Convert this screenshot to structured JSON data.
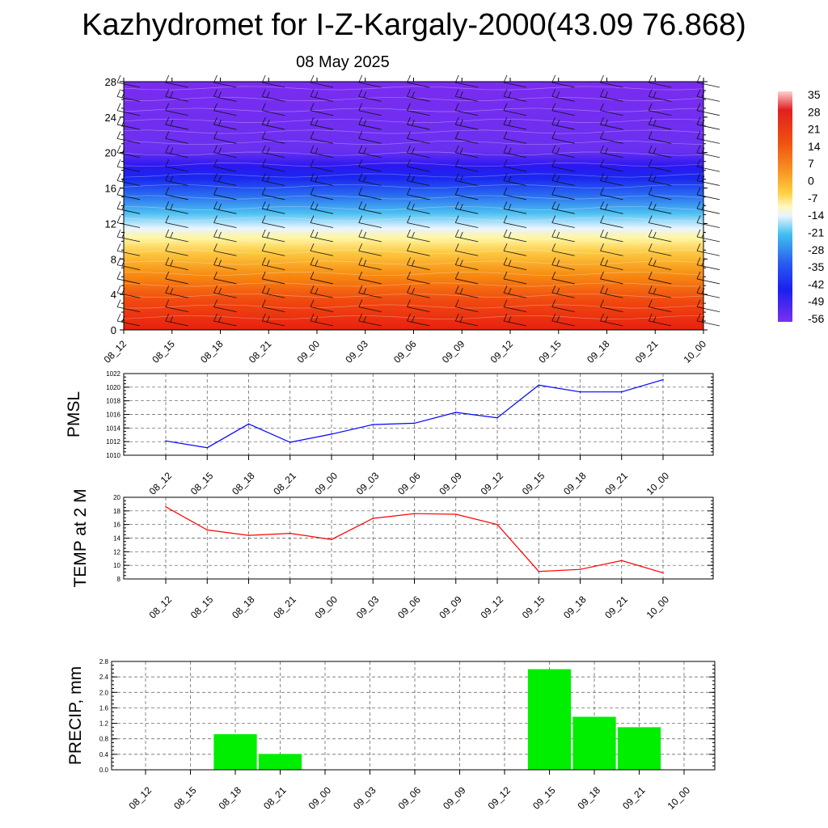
{
  "title": "Kazhydromet for I-Z-Kargaly-2000(43.09 76.868)",
  "subtitle": "08 May 2025",
  "colors": {
    "pmsl_line": "#0000ff",
    "temp_line": "#ff0000",
    "precip_bar": "#00ee00",
    "axis": "#000000",
    "grid": "#555555"
  },
  "chart_data": [
    {
      "type": "heatmap",
      "id": "cross-section",
      "x": [
        "08_12",
        "08_15",
        "08_18",
        "08_21",
        "09_00",
        "09_03",
        "09_06",
        "09_09",
        "09_12",
        "09_15",
        "09_18",
        "09_21",
        "10_00"
      ],
      "y_ticks": [
        0,
        4,
        8,
        12,
        16,
        20,
        24,
        28
      ],
      "ylim": [
        0,
        28
      ],
      "grid": false,
      "overlay": "wind barbs",
      "colorbar": {
        "labels": [
          "35",
          "28",
          "21",
          "14",
          "7",
          "0",
          "-7",
          "-14",
          "-21",
          "-28",
          "-35",
          "-42",
          "-49",
          "-56"
        ],
        "placement": "right"
      }
    },
    {
      "type": "line",
      "id": "pmsl",
      "ylabel": "PMSL",
      "categories": [
        "08_12",
        "08_15",
        "08_18",
        "08_21",
        "09_00",
        "09_03",
        "09_06",
        "09_09",
        "09_12",
        "09_15",
        "09_18",
        "09_21",
        "10_00"
      ],
      "values": [
        1012.1,
        1011.1,
        1014.6,
        1011.9,
        1013.1,
        1014.5,
        1014.7,
        1016.3,
        1015.5,
        1020.3,
        1019.3,
        1019.3,
        1021.1
      ],
      "ylim": [
        1010,
        1022
      ],
      "y_ticks": [
        1010,
        1012,
        1014,
        1016,
        1018,
        1020,
        1022
      ],
      "grid": true
    },
    {
      "type": "line",
      "id": "temp",
      "ylabel": "TEMP at 2 M",
      "categories": [
        "08_12",
        "08_15",
        "08_18",
        "08_21",
        "09_00",
        "09_03",
        "09_06",
        "09_09",
        "09_12",
        "09_15",
        "09_18",
        "09_21",
        "10_00"
      ],
      "values": [
        18.6,
        15.2,
        14.4,
        14.7,
        13.8,
        16.9,
        17.6,
        17.5,
        16.0,
        9.1,
        9.4,
        10.7,
        8.9
      ],
      "ylim": [
        8,
        20
      ],
      "y_ticks": [
        8,
        10,
        12,
        14,
        16,
        18,
        20
      ],
      "grid": true
    },
    {
      "type": "bar",
      "id": "precip",
      "ylabel": "PRECIP, mm",
      "categories": [
        "08_12",
        "08_15",
        "08_18",
        "08_21",
        "09_00",
        "09_03",
        "09_06",
        "09_09",
        "09_12",
        "09_15",
        "09_18",
        "09_21",
        "10_00"
      ],
      "values": [
        0,
        0,
        0.92,
        0.41,
        0,
        0,
        0,
        0,
        0,
        2.6,
        1.37,
        1.1,
        0
      ],
      "ylim": [
        0,
        2.8
      ],
      "y_ticks": [
        "0.0",
        "0.4",
        "0.8",
        "1.2",
        "1.6",
        "2.0",
        "2.4",
        "2.8"
      ],
      "grid": true
    }
  ]
}
